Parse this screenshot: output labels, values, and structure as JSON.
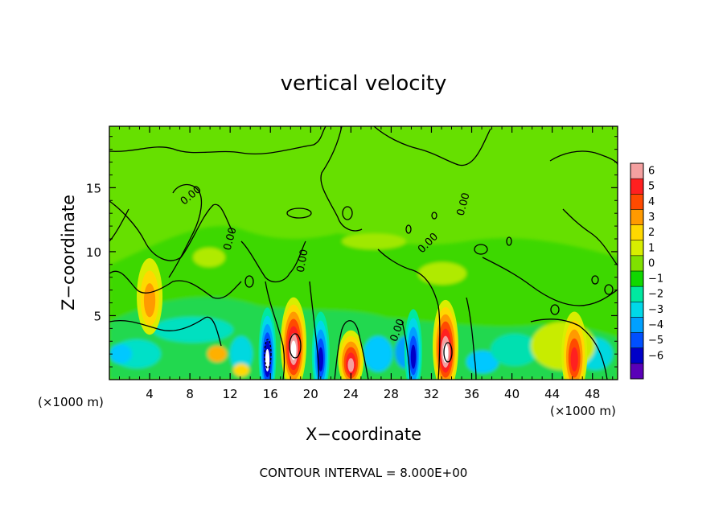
{
  "chart_data": {
    "type": "heatmap",
    "title": "vertical velocity",
    "xlabel": "X−coordinate",
    "ylabel": "Z−coordinate",
    "x_unit_left": "(×1000 m)",
    "x_unit_right": "(×1000 m)",
    "xlim": [
      0,
      50.5
    ],
    "ylim": [
      0,
      19.8
    ],
    "x_ticks": [
      4,
      8,
      12,
      16,
      20,
      24,
      28,
      32,
      36,
      40,
      44,
      48
    ],
    "y_ticks": [
      5,
      10,
      15
    ],
    "contour_interval_text": "CONTOUR INTERVAL = 8.000E+00",
    "contour_labels": [
      "0.00",
      "0.00",
      "0.00",
      "0.00",
      "0.00",
      "0.00"
    ],
    "colorbar": {
      "levels": [
        6,
        5,
        4,
        3,
        2,
        1,
        0,
        -1,
        -2,
        -3,
        -4,
        -5,
        -6
      ],
      "labels": [
        "6",
        "5",
        "4",
        "3",
        "2",
        "1",
        "0",
        "−1",
        "−2",
        "−3",
        "−4",
        "−5",
        "−6"
      ],
      "colors": [
        "#f4a0a0",
        "#ff2020",
        "#ff4a00",
        "#ff9a00",
        "#ffd800",
        "#d8ee00",
        "#80e000",
        "#10d800",
        "#00e8a0",
        "#00d8e8",
        "#00a0ff",
        "#0050ff",
        "#0000c8",
        "#5a00b8"
      ]
    },
    "features": [
      {
        "name": "downdraft",
        "x": 15.7,
        "z": 2.0,
        "w": -6
      },
      {
        "name": "updraft",
        "x": 18.3,
        "z": 2.8,
        "w": 6
      },
      {
        "name": "downdraft",
        "x": 21.0,
        "z": 2.0,
        "w": -4
      },
      {
        "name": "updraft",
        "x": 24.0,
        "z": 1.6,
        "w": 5
      },
      {
        "name": "downdraft",
        "x": 30.2,
        "z": 2.2,
        "w": -4
      },
      {
        "name": "updraft",
        "x": 33.4,
        "z": 2.6,
        "w": 6
      },
      {
        "name": "updraft",
        "x": 46.2,
        "z": 2.0,
        "w": 4
      },
      {
        "name": "updraft",
        "x": 4.0,
        "z": 6.5,
        "w": 2
      }
    ]
  }
}
